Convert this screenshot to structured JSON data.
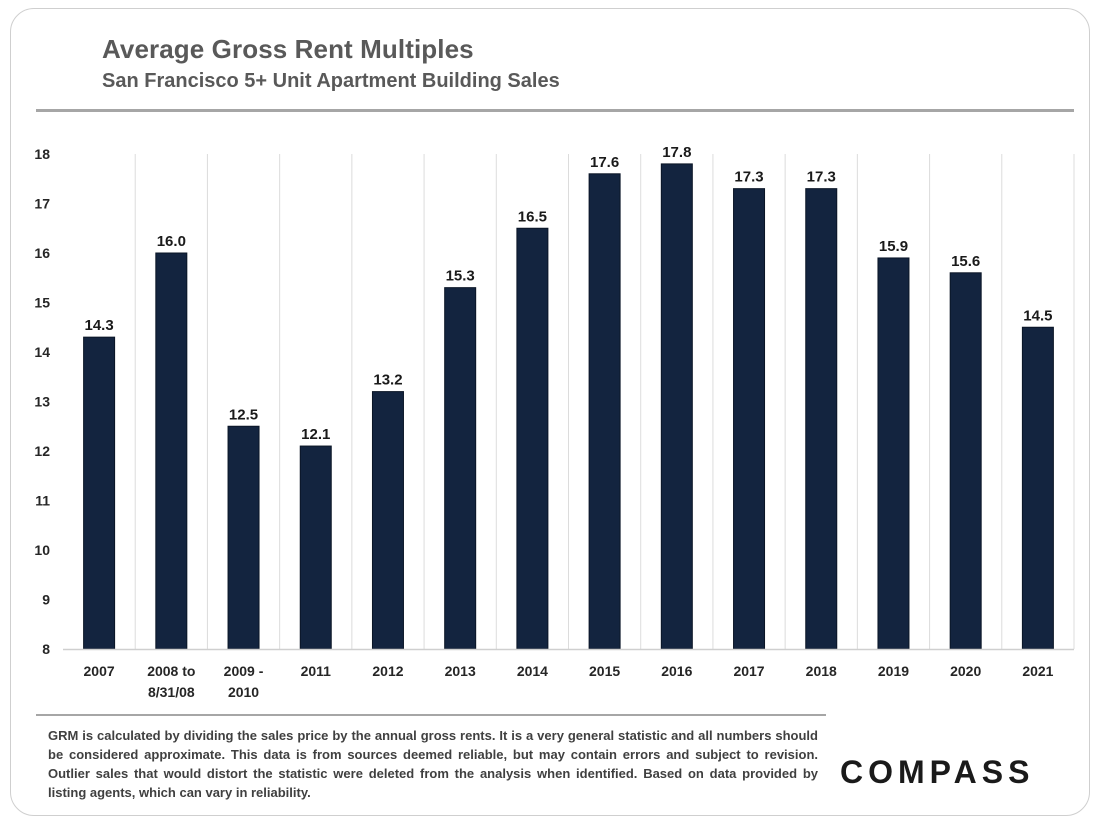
{
  "header": {
    "title": "Average Gross Rent Multiples",
    "subtitle": "San Francisco 5+ Unit Apartment Building Sales"
  },
  "chart_data": {
    "type": "bar",
    "title": "Average Gross Rent Multiples",
    "subtitle": "San Francisco 5+ Unit Apartment Building Sales",
    "xlabel": "",
    "ylabel": "",
    "ylim": [
      8,
      18
    ],
    "yticks": [
      "8",
      "9",
      "10",
      "11",
      "12",
      "13",
      "14",
      "15",
      "16",
      "17",
      "18"
    ],
    "categories": [
      [
        "2007"
      ],
      [
        "2008 to",
        "8/31/08"
      ],
      [
        "2009 -",
        "2010"
      ],
      [
        "2011"
      ],
      [
        "2012"
      ],
      [
        "2013"
      ],
      [
        "2014"
      ],
      [
        "2015"
      ],
      [
        "2016"
      ],
      [
        "2017"
      ],
      [
        "2018"
      ],
      [
        "2019"
      ],
      [
        "2020"
      ],
      [
        "2021"
      ]
    ],
    "values": [
      14.3,
      16.0,
      12.5,
      12.1,
      13.2,
      15.3,
      16.5,
      17.6,
      17.8,
      17.3,
      17.3,
      15.9,
      15.6,
      14.5
    ],
    "data_labels": [
      "14.3",
      "16.0",
      "12.5",
      "12.1",
      "13.2",
      "15.3",
      "16.5",
      "17.6",
      "17.8",
      "17.3",
      "17.3",
      "15.9",
      "15.6",
      "14.5"
    ],
    "bar_color": "#13243f",
    "grid": "vertical",
    "legend": "none"
  },
  "footer": {
    "note": "GRM is calculated by dividing the sales price by the annual gross rents. It is a very general statistic and all numbers should be considered approximate. This data is from sources deemed reliable, but may contain errors and subject to revision. Outlier sales that would distort the statistic were deleted from the analysis when identified. Based on data provided by listing agents, which can vary in reliability.",
    "logo_text": "COMPASS"
  }
}
